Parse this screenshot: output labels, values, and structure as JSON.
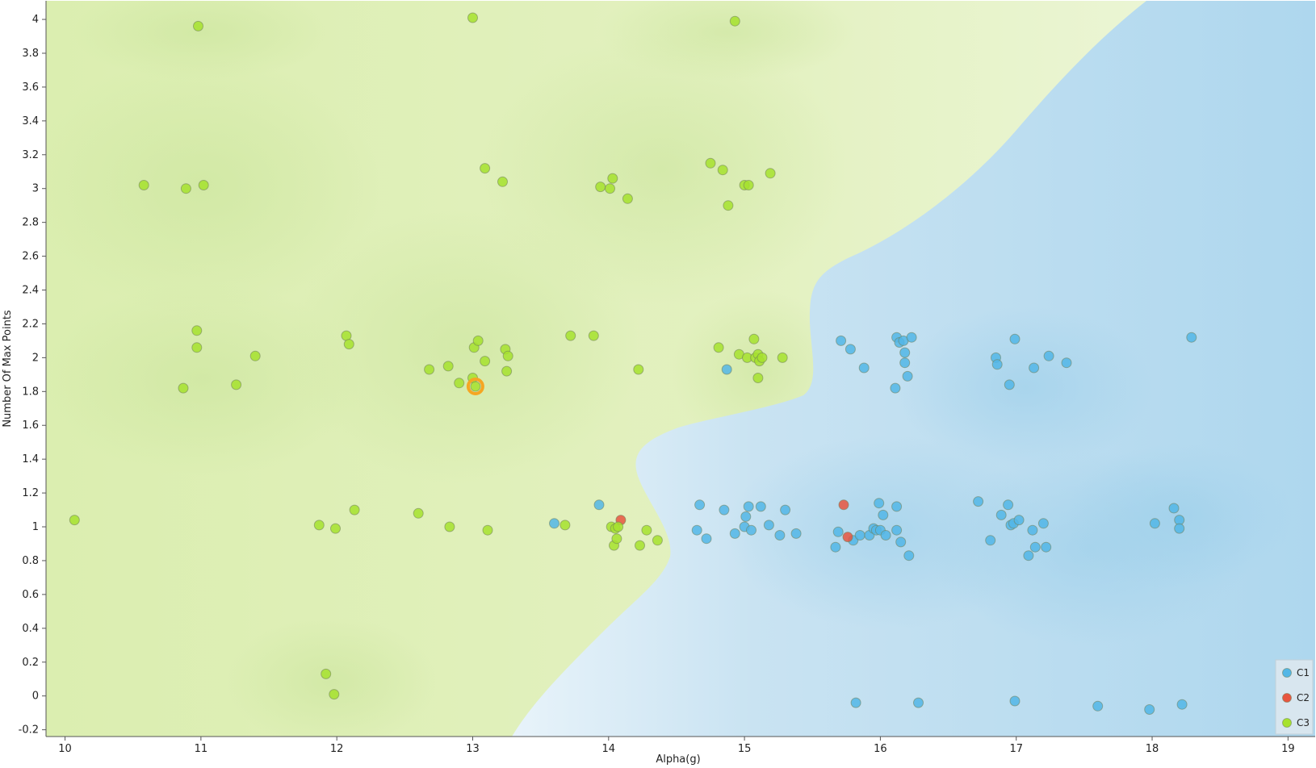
{
  "chart_data": {
    "type": "scatter",
    "title": "",
    "xlabel": "Alpha(g)",
    "ylabel": "Number Of Max Points",
    "xlim": [
      9.86,
      19.2
    ],
    "ylim": [
      -0.24,
      4.11
    ],
    "x_ticks": [
      "10",
      "11",
      "12",
      "13",
      "14",
      "15",
      "16",
      "17",
      "18",
      "19"
    ],
    "y_ticks": [
      "-0.2",
      "0",
      "0.2",
      "0.4",
      "0.6",
      "0.8",
      "1",
      "1.2",
      "1.4",
      "1.6",
      "1.8",
      "2",
      "2.2",
      "2.4",
      "2.6",
      "2.8",
      "3",
      "3.2",
      "3.4",
      "3.6",
      "3.8",
      "4"
    ],
    "legend_position": "bottom-right",
    "grid": false,
    "background": "classification regions: C3 (green) on the left/upper area, C1 (blue) on the lower-right area",
    "highlighted_point": {
      "series": "C3",
      "x": 13.02,
      "y": 1.83,
      "color": "#f5a623"
    },
    "series": [
      {
        "name": "C1",
        "color": "#52b6e6",
        "points": [
          [
            13.6,
            1.02
          ],
          [
            13.93,
            1.13
          ],
          [
            14.65,
            0.98
          ],
          [
            14.67,
            1.13
          ],
          [
            14.72,
            0.93
          ],
          [
            14.85,
            1.1
          ],
          [
            14.93,
            0.96
          ],
          [
            15.0,
            1.0
          ],
          [
            15.01,
            1.06
          ],
          [
            15.03,
            1.12
          ],
          [
            15.05,
            0.98
          ],
          [
            15.12,
            1.12
          ],
          [
            15.18,
            1.01
          ],
          [
            15.26,
            0.95
          ],
          [
            15.3,
            1.1
          ],
          [
            15.38,
            0.96
          ],
          [
            15.67,
            0.88
          ],
          [
            15.69,
            0.97
          ],
          [
            15.8,
            0.92
          ],
          [
            15.85,
            0.95
          ],
          [
            15.92,
            0.95
          ],
          [
            15.95,
            0.99
          ],
          [
            15.97,
            0.98
          ],
          [
            15.99,
            1.14
          ],
          [
            16.0,
            0.98
          ],
          [
            16.02,
            1.07
          ],
          [
            16.04,
            0.95
          ],
          [
            16.12,
            1.12
          ],
          [
            16.12,
            0.98
          ],
          [
            16.15,
            0.91
          ],
          [
            16.21,
            0.83
          ],
          [
            14.87,
            1.93
          ],
          [
            15.71,
            2.1
          ],
          [
            15.78,
            2.05
          ],
          [
            15.88,
            1.94
          ],
          [
            16.12,
            2.12
          ],
          [
            16.14,
            2.09
          ],
          [
            16.17,
            2.1
          ],
          [
            16.18,
            2.03
          ],
          [
            16.18,
            1.97
          ],
          [
            16.2,
            1.89
          ],
          [
            16.23,
            2.12
          ],
          [
            16.11,
            1.82
          ],
          [
            16.72,
            1.15
          ],
          [
            16.81,
            0.92
          ],
          [
            16.89,
            1.07
          ],
          [
            16.94,
            1.13
          ],
          [
            16.96,
            1.01
          ],
          [
            16.98,
            1.02
          ],
          [
            17.02,
            1.04
          ],
          [
            17.09,
            0.83
          ],
          [
            17.12,
            0.98
          ],
          [
            17.14,
            0.88
          ],
          [
            17.2,
            1.02
          ],
          [
            17.22,
            0.88
          ],
          [
            16.85,
            2.0
          ],
          [
            16.86,
            1.96
          ],
          [
            16.95,
            1.84
          ],
          [
            16.99,
            2.11
          ],
          [
            17.13,
            1.94
          ],
          [
            17.24,
            2.01
          ],
          [
            17.37,
            1.97
          ],
          [
            18.02,
            1.02
          ],
          [
            18.16,
            1.11
          ],
          [
            18.2,
            1.04
          ],
          [
            18.2,
            0.99
          ],
          [
            18.29,
            2.12
          ],
          [
            15.82,
            -0.04
          ],
          [
            16.28,
            -0.04
          ],
          [
            16.99,
            -0.03
          ],
          [
            17.6,
            -0.06
          ],
          [
            17.98,
            -0.08
          ],
          [
            18.22,
            -0.05
          ]
        ]
      },
      {
        "name": "C2",
        "color": "#e8553f",
        "points": [
          [
            14.09,
            1.04
          ],
          [
            15.73,
            1.13
          ],
          [
            15.76,
            0.94
          ]
        ]
      },
      {
        "name": "C3",
        "color": "#a6e22e",
        "points": [
          [
            10.07,
            1.04
          ],
          [
            10.58,
            3.02
          ],
          [
            10.87,
            1.82
          ],
          [
            10.89,
            3.0
          ],
          [
            10.97,
            2.16
          ],
          [
            10.97,
            2.06
          ],
          [
            10.98,
            3.96
          ],
          [
            11.02,
            3.02
          ],
          [
            11.26,
            1.84
          ],
          [
            11.4,
            2.01
          ],
          [
            11.87,
            1.01
          ],
          [
            11.92,
            0.13
          ],
          [
            11.98,
            0.01
          ],
          [
            11.99,
            0.99
          ],
          [
            12.07,
            2.13
          ],
          [
            12.09,
            2.08
          ],
          [
            12.13,
            1.1
          ],
          [
            12.6,
            1.08
          ],
          [
            12.68,
            1.93
          ],
          [
            12.82,
            1.95
          ],
          [
            12.83,
            1.0
          ],
          [
            12.9,
            1.85
          ],
          [
            13.0,
            4.01
          ],
          [
            13.0,
            1.88
          ],
          [
            13.01,
            2.06
          ],
          [
            13.02,
            1.83
          ],
          [
            13.04,
            2.1
          ],
          [
            13.09,
            1.98
          ],
          [
            13.09,
            3.12
          ],
          [
            13.11,
            0.98
          ],
          [
            13.22,
            3.04
          ],
          [
            13.24,
            2.05
          ],
          [
            13.25,
            1.92
          ],
          [
            13.26,
            2.01
          ],
          [
            13.68,
            1.01
          ],
          [
            13.72,
            2.13
          ],
          [
            13.89,
            2.13
          ],
          [
            13.94,
            3.01
          ],
          [
            14.01,
            3.0
          ],
          [
            14.02,
            1.0
          ],
          [
            14.03,
            3.06
          ],
          [
            14.04,
            0.89
          ],
          [
            14.05,
            0.99
          ],
          [
            14.06,
            0.93
          ],
          [
            14.07,
            1.0
          ],
          [
            14.14,
            2.94
          ],
          [
            14.22,
            1.93
          ],
          [
            14.23,
            0.89
          ],
          [
            14.28,
            0.98
          ],
          [
            14.36,
            0.92
          ],
          [
            14.75,
            3.15
          ],
          [
            14.81,
            2.06
          ],
          [
            14.84,
            3.11
          ],
          [
            14.88,
            2.9
          ],
          [
            14.93,
            3.99
          ],
          [
            14.96,
            2.02
          ],
          [
            15.0,
            3.02
          ],
          [
            15.02,
            2.0
          ],
          [
            15.03,
            3.02
          ],
          [
            15.07,
            2.11
          ],
          [
            15.08,
            2.0
          ],
          [
            15.1,
            2.02
          ],
          [
            15.1,
            1.88
          ],
          [
            15.11,
            1.98
          ],
          [
            15.13,
            2.0
          ],
          [
            15.19,
            3.09
          ],
          [
            15.28,
            2.0
          ]
        ]
      }
    ],
    "legend": [
      {
        "label": "C1",
        "color": "#52b6e6"
      },
      {
        "label": "C2",
        "color": "#e8553f"
      },
      {
        "label": "C3",
        "color": "#a6e22e"
      }
    ]
  }
}
